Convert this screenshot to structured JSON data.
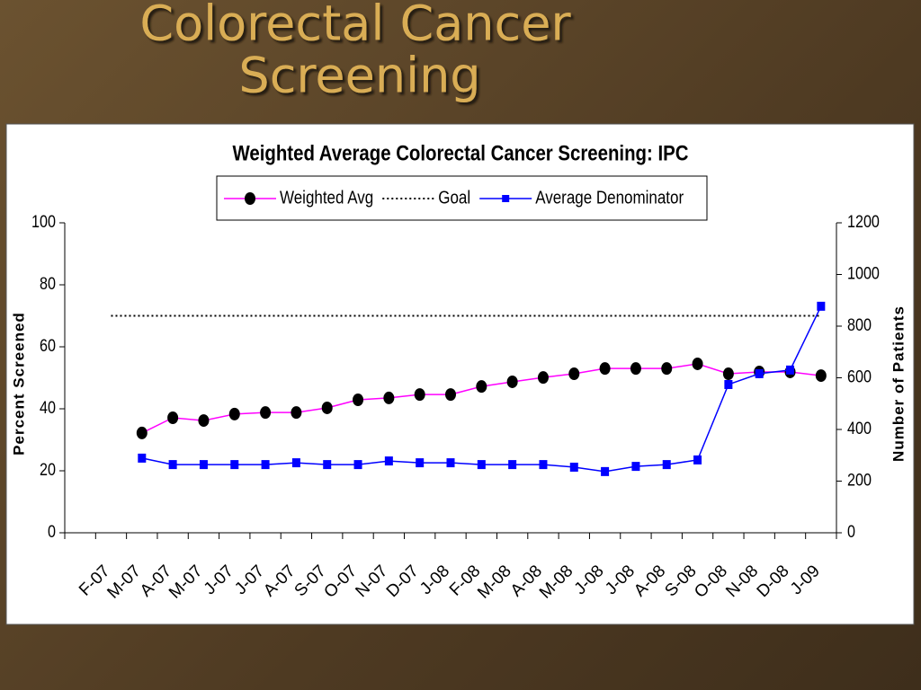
{
  "slide": {
    "title_lines": [
      "Colorectal Cancer",
      "Screening"
    ]
  },
  "chart_data": {
    "type": "line",
    "title": "Weighted Average Colorectal Cancer Screening: IPC",
    "y_label": "Percent Screened",
    "y2_label": "Number of Patients",
    "categories": [
      null,
      "F-07",
      "M-07",
      "A-07",
      "M-07",
      "J-07",
      "J-07",
      "A-07",
      "S-07",
      "O-07",
      "N-07",
      "D-07",
      "J-08",
      "F-08",
      "M-08",
      "A-08",
      "M-08",
      "J-08",
      "J-08",
      "A-08",
      "S-08",
      "O-08",
      "N-08",
      "D-08",
      "J-09"
    ],
    "series": [
      {
        "name": "Weighted Avg",
        "color": "#ff00ff",
        "marker": "circle",
        "marker_color": "#000000",
        "values": [
          null,
          null,
          32.2,
          37.1,
          36.2,
          38.3,
          38.8,
          38.8,
          40.3,
          42.9,
          43.5,
          44.6,
          44.6,
          47.2,
          48.7,
          50.1,
          51.3,
          53.0,
          53.0,
          53.0,
          54.5,
          51.3,
          51.9,
          51.9,
          50.7
        ]
      },
      {
        "name": "Goal",
        "color": "#000000",
        "dash": "dotted",
        "values": [
          null,
          70,
          70,
          70,
          70,
          70,
          70,
          70,
          70,
          70,
          70,
          70,
          70,
          70,
          70,
          70,
          70,
          70,
          70,
          70,
          70,
          70,
          70,
          70,
          70
        ]
      },
      {
        "name": "Average Denominator",
        "color": "#0000ff",
        "marker": "square",
        "marker_color": "#0000ff",
        "axis": "y2",
        "values": [
          null,
          null,
          289,
          264,
          264,
          264,
          264,
          271,
          264,
          264,
          278,
          271,
          271,
          264,
          264,
          264,
          254,
          237,
          257,
          264,
          282,
          574,
          616,
          630,
          877
        ]
      }
    ],
    "ylim": [
      0,
      100
    ],
    "yticks": [
      0,
      20,
      40,
      60,
      80,
      100
    ],
    "y2lim": [
      0,
      1200
    ],
    "y2ticks": [
      0,
      200,
      400,
      600,
      800,
      1000,
      1200
    ],
    "legend": "top"
  }
}
